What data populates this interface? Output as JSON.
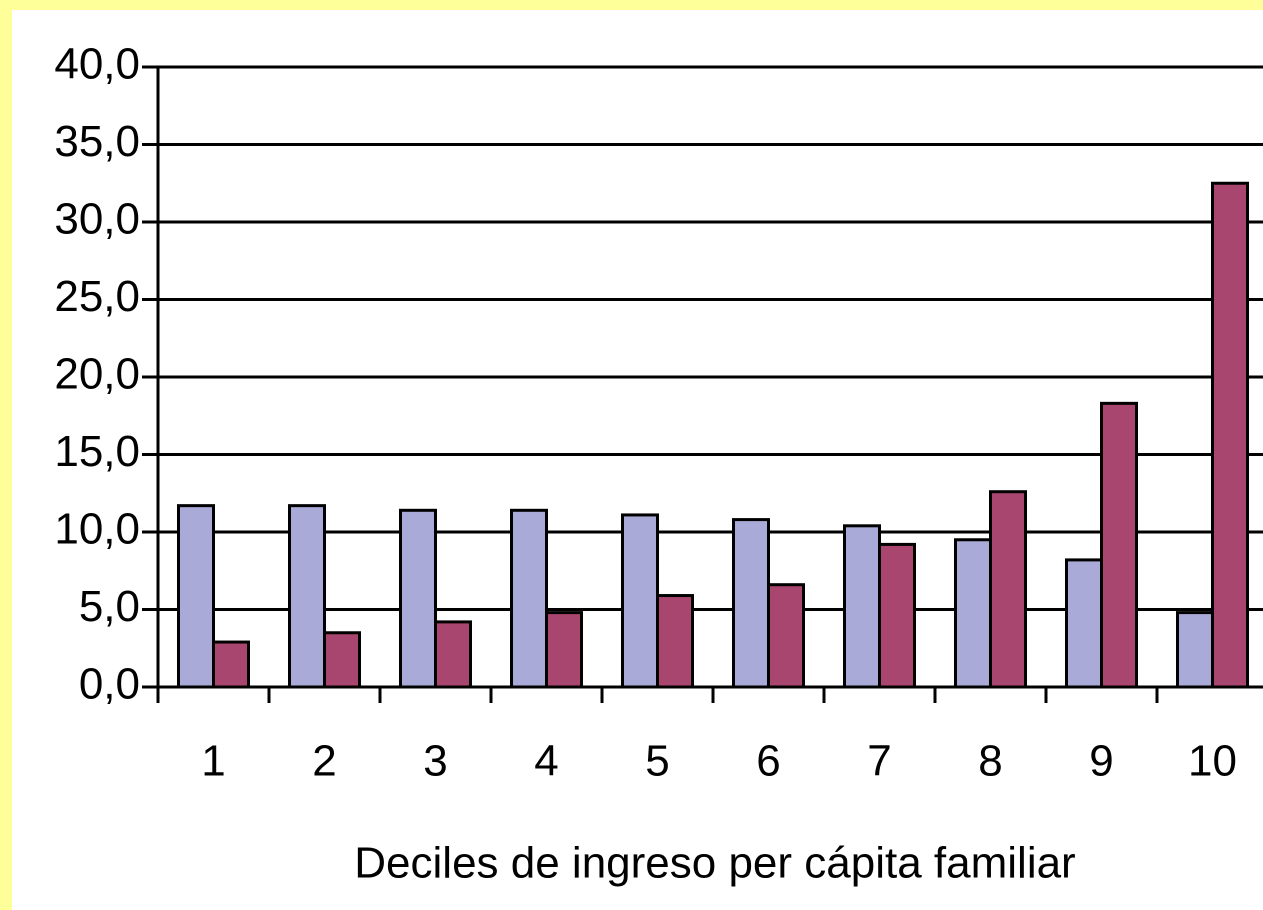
{
  "chart_data": {
    "type": "bar",
    "x_label": "Deciles de ingreso per cápita familiar",
    "categories": [
      "1",
      "2",
      "3",
      "4",
      "5",
      "6",
      "7",
      "8",
      "9",
      "10"
    ],
    "series": [
      {
        "color": "#aaaad8",
        "values": [
          11.7,
          11.7,
          11.4,
          11.4,
          11.1,
          10.8,
          10.4,
          9.5,
          8.2,
          4.8
        ]
      },
      {
        "color": "#a8466f",
        "values": [
          2.9,
          3.5,
          4.2,
          4.8,
          5.9,
          6.6,
          9.2,
          12.6,
          18.3,
          32.5
        ]
      }
    ],
    "ylim": [
      0,
      40
    ],
    "yticks": [
      {
        "value": 0,
        "label": "0,0"
      },
      {
        "value": 5,
        "label": "5,0"
      },
      {
        "value": 10,
        "label": "10,0"
      },
      {
        "value": 15,
        "label": "15,0"
      },
      {
        "value": 20,
        "label": "20,0"
      },
      {
        "value": 25,
        "label": "25,0"
      },
      {
        "value": 30,
        "label": "30,0"
      },
      {
        "value": 35,
        "label": "35,0"
      },
      {
        "value": 40,
        "label": "40,0"
      }
    ],
    "grid": true
  }
}
